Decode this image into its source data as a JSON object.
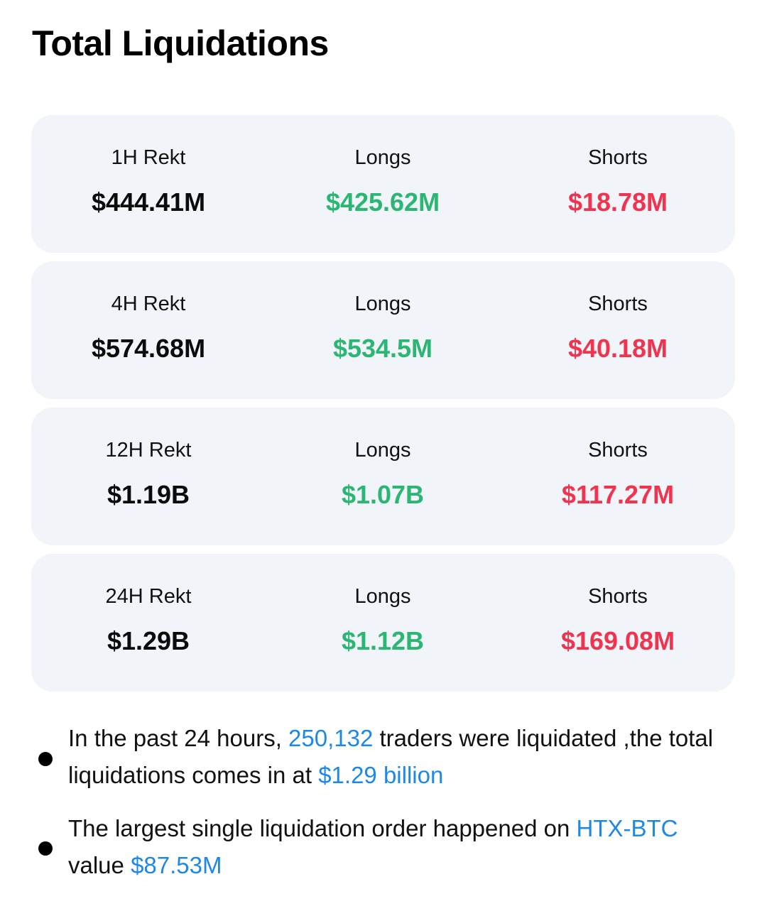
{
  "title": "Total Liquidations",
  "colors": {
    "card_bg": "#f1f5f9",
    "long_green": "#2bb673",
    "short_red": "#f0344f",
    "highlight_blue": "#1e88e5"
  },
  "cards": [
    {
      "period_label": "1H Rekt",
      "total": "$444.41M",
      "longs_label": "Longs",
      "longs": "$425.62M",
      "shorts_label": "Shorts",
      "shorts": "$18.78M"
    },
    {
      "period_label": "4H Rekt",
      "total": "$574.68M",
      "longs_label": "Longs",
      "longs": "$534.5M",
      "shorts_label": "Shorts",
      "shorts": "$40.18M"
    },
    {
      "period_label": "12H Rekt",
      "total": "$1.19B",
      "longs_label": "Longs",
      "longs": "$1.07B",
      "shorts_label": "Shorts",
      "shorts": "$117.27M"
    },
    {
      "period_label": "24H Rekt",
      "total": "$1.29B",
      "longs_label": "Longs",
      "longs": "$1.12B",
      "shorts_label": "Shorts",
      "shorts": "$169.08M"
    }
  ],
  "summary": {
    "line1": {
      "prefix": "In the past 24 hours, ",
      "traders": "250,132",
      "middle": " traders were liquidated ,the total liquidations comes in at ",
      "total": "$1.29 billion"
    },
    "line2": {
      "prefix": "The largest single liquidation order happened on ",
      "exchange": "HTX-BTC",
      "middle": " value ",
      "value": "$87.53M"
    }
  }
}
